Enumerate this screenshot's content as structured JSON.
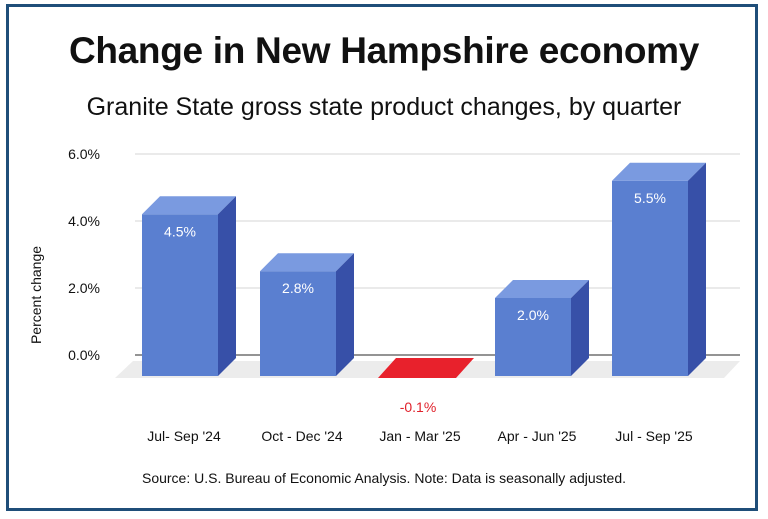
{
  "title": "Change in New Hampshire economy",
  "subtitle": "Granite State gross state product changes, by quarter",
  "source": "Source: U.S. Bureau of Economic Analysis. Note: Data is seasonally adjusted.",
  "colors": {
    "positive": "#5a7fd0",
    "negative": "#e8212c",
    "border": "#1f4e79"
  },
  "chart_data": {
    "type": "bar",
    "title": "Change in New Hampshire economy",
    "subtitle": "Granite State gross state product changes, by quarter",
    "xlabel": "",
    "ylabel": "Percent change",
    "categories": [
      "Jul- Sep '24",
      "Oct - Dec '24",
      "Jan - Mar '25",
      "Apr - Jun '25",
      "Jul - Sep '25"
    ],
    "values": [
      4.5,
      2.8,
      -0.1,
      2.0,
      5.5
    ],
    "data_labels": [
      "4.5%",
      "2.8%",
      "-0.1%",
      "2.0%",
      "5.5%"
    ],
    "yticks": [
      "0.0%",
      "2.0%",
      "4.0%",
      "6.0%"
    ],
    "ytick_values": [
      0,
      2,
      4,
      6
    ],
    "ylim": [
      0,
      6
    ],
    "grid": true,
    "legend": "none"
  }
}
